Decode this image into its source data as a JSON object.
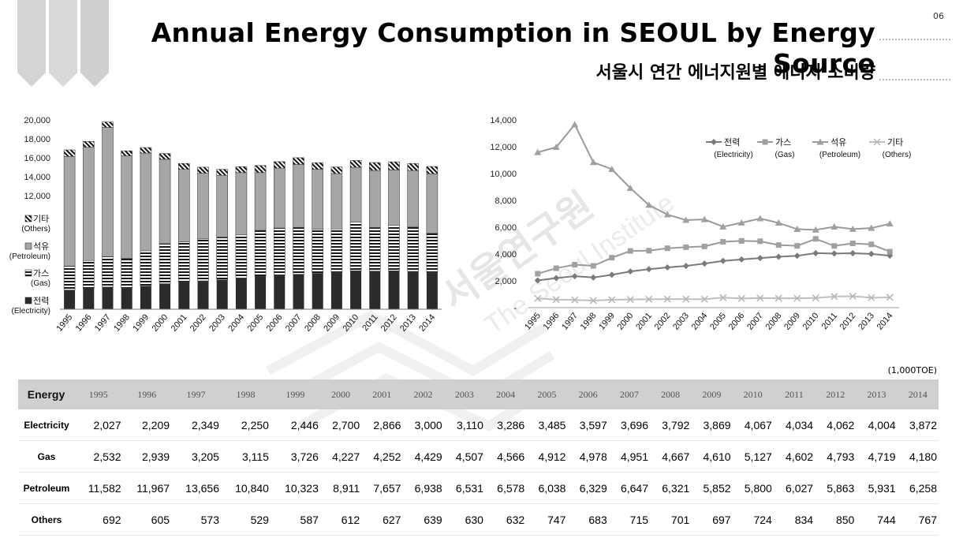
{
  "page_number": "06",
  "title": "Annual Energy Consumption  in SEOUL by Energy Source",
  "subtitle": "서울시 연간 에너지원별 에너지 소비량",
  "unit": "(1,000TOE)",
  "watermark": {
    "line1": "서울연구원",
    "line2": "The Seoul Institute"
  },
  "colors": {
    "electricity": "#2b2b2b",
    "petroleum": "#a6a6a6",
    "line_marker": "#8a8a8a",
    "others_line": "#bfbfbf",
    "table_header": "#d0d0d0"
  },
  "chart_data": [
    {
      "type": "bar",
      "stacked": true,
      "categories": [
        "1995",
        "1996",
        "1997",
        "1998",
        "1999",
        "2000",
        "2001",
        "2002",
        "2003",
        "2004",
        "2005",
        "2006",
        "2007",
        "2008",
        "2009",
        "2010",
        "2011",
        "2012",
        "2013",
        "2014"
      ],
      "yticks": [
        "20,000",
        "18,000",
        "16,000",
        "14,000",
        "12,000"
      ],
      "ylim": [
        0,
        20000
      ],
      "legend_position": "left",
      "series": [
        {
          "name": "전력",
          "name_en": "(Electricity)",
          "fill": "solid-dark",
          "values": [
            2027,
            2209,
            2349,
            2250,
            2446,
            2700,
            2866,
            3000,
            3110,
            3286,
            3485,
            3597,
            3696,
            3792,
            3869,
            4067,
            4034,
            4062,
            4004,
            3872
          ]
        },
        {
          "name": "가스",
          "name_en": "(Gas)",
          "fill": "horizontal-stripes",
          "values": [
            2532,
            2939,
            3205,
            3115,
            3726,
            4227,
            4252,
            4429,
            4507,
            4566,
            4912,
            4978,
            4951,
            4667,
            4610,
            5127,
            4602,
            4793,
            4719,
            4180
          ]
        },
        {
          "name": "석유",
          "name_en": "(Petroleum)",
          "fill": "solid-gray",
          "values": [
            11582,
            11967,
            13656,
            10840,
            10323,
            8911,
            7657,
            6938,
            6531,
            6578,
            6038,
            6329,
            6647,
            6321,
            5852,
            5800,
            6027,
            5863,
            5931,
            6258
          ]
        },
        {
          "name": "기타",
          "name_en": "(Others)",
          "fill": "diagonal-hatch",
          "values": [
            692,
            605,
            573,
            529,
            587,
            612,
            627,
            639,
            630,
            632,
            747,
            683,
            715,
            701,
            697,
            724,
            834,
            850,
            744,
            767
          ]
        }
      ]
    },
    {
      "type": "line",
      "x": [
        "1995",
        "1996",
        "1997",
        "1998",
        "1999",
        "2000",
        "2001",
        "2002",
        "2003",
        "2004",
        "2005",
        "2006",
        "2007",
        "2008",
        "2009",
        "2010",
        "2011",
        "2012",
        "2013",
        "2014"
      ],
      "yticks": [
        "14,000",
        "12,000",
        "10,000",
        "8,000",
        "6,000",
        "4,000",
        "2,000",
        "-"
      ],
      "ylim": [
        0,
        14000
      ],
      "legend_position": "top-right",
      "series": [
        {
          "name": "전력",
          "name_en": "(Electricity)",
          "marker": "diamond",
          "values": [
            2027,
            2209,
            2349,
            2250,
            2446,
            2700,
            2866,
            3000,
            3110,
            3286,
            3485,
            3597,
            3696,
            3792,
            3869,
            4067,
            4034,
            4062,
            4004,
            3872
          ]
        },
        {
          "name": "가스",
          "name_en": "(Gas)",
          "marker": "square",
          "values": [
            2532,
            2939,
            3205,
            3115,
            3726,
            4227,
            4252,
            4429,
            4507,
            4566,
            4912,
            4978,
            4951,
            4667,
            4610,
            5127,
            4602,
            4793,
            4719,
            4180
          ]
        },
        {
          "name": "석유",
          "name_en": "(Petroleum)",
          "marker": "triangle",
          "values": [
            11582,
            11967,
            13656,
            10840,
            10323,
            8911,
            7657,
            6938,
            6531,
            6578,
            6038,
            6329,
            6647,
            6321,
            5852,
            5800,
            6027,
            5863,
            5931,
            6258
          ]
        },
        {
          "name": "기타",
          "name_en": "(Others)",
          "marker": "x",
          "values": [
            692,
            605,
            573,
            529,
            587,
            612,
            627,
            639,
            630,
            632,
            747,
            683,
            715,
            701,
            697,
            724,
            834,
            850,
            744,
            767
          ]
        }
      ]
    },
    {
      "type": "table",
      "header_label": "Energy",
      "columns": [
        "1995",
        "1996",
        "1997",
        "1998",
        "1999",
        "2000",
        "2001",
        "2002",
        "2003",
        "2004",
        "2005",
        "2006",
        "2007",
        "2008",
        "2009",
        "2010",
        "2011",
        "2012",
        "2013",
        "2014"
      ],
      "rows": [
        {
          "label": "Electricity",
          "values": [
            "2,027",
            "2,209",
            "2,349",
            "2,250",
            "2,446",
            "2,700",
            "2,866",
            "3,000",
            "3,110",
            "3,286",
            "3,485",
            "3,597",
            "3,696",
            "3,792",
            "3,869",
            "4,067",
            "4,034",
            "4,062",
            "4,004",
            "3,872"
          ]
        },
        {
          "label": "Gas",
          "values": [
            "2,532",
            "2,939",
            "3,205",
            "3,115",
            "3,726",
            "4,227",
            "4,252",
            "4,429",
            "4,507",
            "4,566",
            "4,912",
            "4,978",
            "4,951",
            "4,667",
            "4,610",
            "5,127",
            "4,602",
            "4,793",
            "4,719",
            "4,180"
          ]
        },
        {
          "label": "Petroleum",
          "values": [
            "11,582",
            "11,967",
            "13,656",
            "10,840",
            "10,323",
            "8,911",
            "7,657",
            "6,938",
            "6,531",
            "6,578",
            "6,038",
            "6,329",
            "6,647",
            "6,321",
            "5,852",
            "5,800",
            "6,027",
            "5,863",
            "5,931",
            "6,258"
          ]
        },
        {
          "label": "Others",
          "values": [
            "692",
            "605",
            "573",
            "529",
            "587",
            "612",
            "627",
            "639",
            "630",
            "632",
            "747",
            "683",
            "715",
            "701",
            "697",
            "724",
            "834",
            "850",
            "744",
            "767"
          ]
        }
      ]
    }
  ]
}
